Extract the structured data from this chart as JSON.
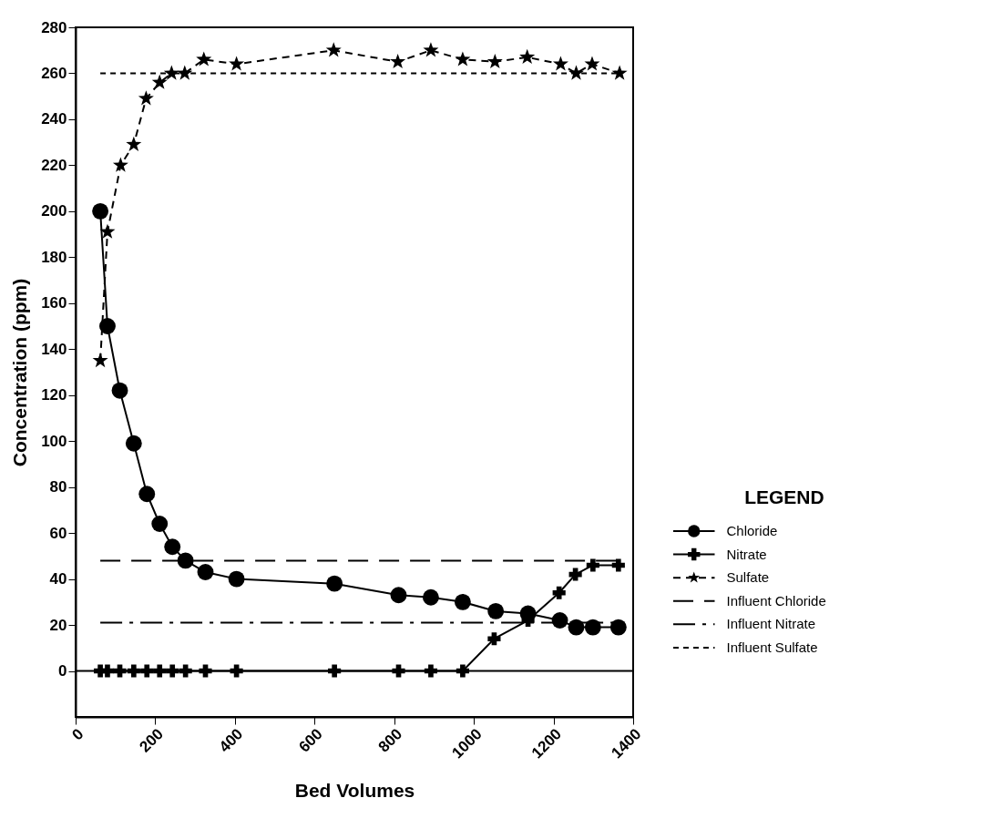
{
  "chart_data": {
    "type": "line",
    "xlabel": "Bed Volumes",
    "ylabel": "Concentration (ppm)",
    "legend_title": "LEGEND",
    "xlim": [
      0,
      1400
    ],
    "xticks": [
      0,
      200,
      400,
      600,
      800,
      {
        "value": 1000,
        "label": "1000"
      },
      {
        "value": 1200,
        "label": "1200"
      },
      {
        "value": 1400,
        "label": "1400"
      }
    ],
    "ylim": [
      -20,
      280
    ],
    "yticks": [
      0,
      20,
      40,
      60,
      80,
      100,
      120,
      140,
      160,
      180,
      200,
      220,
      240,
      260,
      280
    ],
    "grid": false,
    "legend": "right",
    "ref_lines": [
      {
        "axis": "y",
        "value": 0,
        "color": "#000000",
        "line_style": "solid"
      }
    ],
    "series": [
      {
        "name": "Chloride",
        "type": "line",
        "color": "#000000",
        "marker": "circle",
        "line_style": "solid",
        "x": [
          62,
          80,
          111,
          146,
          179,
          211,
          243,
          276,
          326,
          404,
          650,
          811,
          892,
          972,
          1055,
          1136,
          1216,
          1257,
          1299,
          1363
        ],
        "values": [
          200,
          150,
          122,
          99,
          77,
          64,
          54,
          48,
          43,
          40,
          38,
          33,
          32,
          30,
          26,
          25,
          22,
          19,
          19,
          19
        ]
      },
      {
        "name": "Nitrate",
        "type": "line",
        "color": "#000000",
        "marker": "cross",
        "line_style": "solid",
        "x": [
          62,
          80,
          111,
          146,
          179,
          211,
          243,
          276,
          326,
          404,
          650,
          811,
          892,
          972,
          1051,
          1136,
          1214,
          1255,
          1299,
          1363
        ],
        "values": [
          0,
          0,
          0,
          0,
          0,
          0,
          0,
          0,
          0,
          0,
          0,
          0,
          0,
          0,
          14,
          22,
          34,
          42,
          46,
          46
        ]
      },
      {
        "name": "Sulfate",
        "type": "line",
        "color": "#000000",
        "marker": "star",
        "line_style": "dashed",
        "x": [
          62,
          80,
          113,
          146,
          177,
          211,
          241,
          274,
          322,
          404,
          648,
          809,
          892,
          972,
          1053,
          1134,
          1218,
          1257,
          1297,
          1366
        ],
        "values": [
          135,
          191,
          220,
          229,
          249,
          256,
          260,
          260,
          266,
          264,
          270,
          265,
          270,
          266,
          265,
          267,
          264,
          260,
          264,
          260
        ]
      },
      {
        "name": "Influent  Chloride",
        "type": "line",
        "color": "#000000",
        "marker": "none",
        "line_style": "longdash",
        "x": [
          62,
          1363
        ],
        "values": [
          48,
          48
        ]
      },
      {
        "name": "Influent  Nitrate",
        "type": "line",
        "color": "#000000",
        "marker": "none",
        "line_style": "dashdot",
        "x": [
          62,
          1363
        ],
        "values": [
          21,
          21
        ]
      },
      {
        "name": "Influent  Sulfate",
        "type": "line",
        "color": "#000000",
        "marker": "none",
        "line_style": "dotted",
        "x": [
          62,
          1363
        ],
        "values": [
          260,
          260
        ]
      }
    ]
  }
}
